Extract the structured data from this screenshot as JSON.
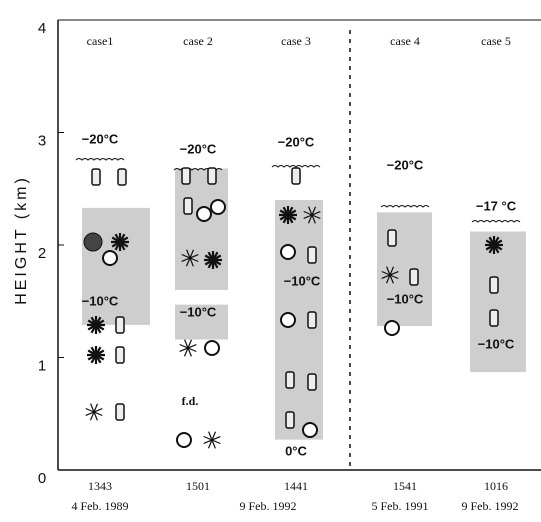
{
  "y_axis": {
    "label": "HEIGHT (km)",
    "ylim": [
      0,
      4
    ],
    "yticks": [
      0,
      1,
      2,
      3,
      4
    ]
  },
  "cases": [
    {
      "name": "case1",
      "time": "1343",
      "date": "4 Feb. 1989",
      "temperatures": [
        "−20°C",
        "−10°C"
      ],
      "shaded_ranges": [
        [
          1.29,
          2.33
        ]
      ]
    },
    {
      "name": "case 2",
      "time": "1501",
      "temperatures": [
        "−20°C",
        "−10°C"
      ],
      "note": "f.d.",
      "shaded_ranges": [
        [
          1.6,
          2.68
        ],
        [
          1.16,
          1.47
        ]
      ]
    },
    {
      "name": "case 3",
      "time": "1441",
      "date": "9 Feb. 1992",
      "temperatures": [
        "−20°C",
        "−10°C",
        "0°C"
      ],
      "shaded_ranges": [
        [
          0.27,
          2.4
        ]
      ]
    },
    {
      "name": "case 4",
      "time": "1541",
      "date": "5 Feb. 1991",
      "temperatures": [
        "−20°C",
        "−10°C"
      ],
      "shaded_ranges": [
        [
          1.28,
          2.29
        ]
      ]
    },
    {
      "name": "case 5",
      "time": "1016",
      "date": "9 Feb. 1992",
      "temperatures": [
        "−17 °C",
        "−10°C"
      ],
      "shaded_ranges": [
        [
          0.87,
          2.12
        ]
      ]
    }
  ]
}
